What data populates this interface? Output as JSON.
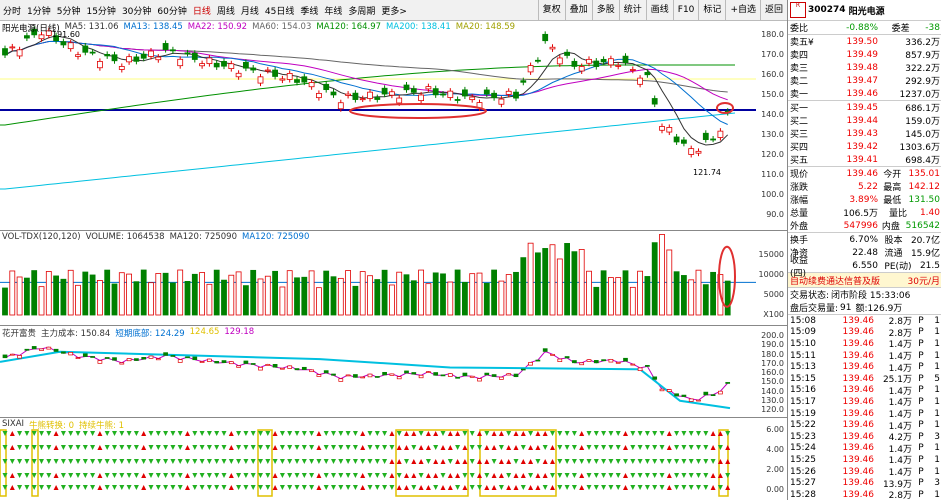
{
  "toolbar": {
    "timeframes": [
      {
        "label": "分时",
        "active": false
      },
      {
        "label": "1分钟",
        "active": false
      },
      {
        "label": "5分钟",
        "active": false
      },
      {
        "label": "15分钟",
        "active": false
      },
      {
        "label": "30分钟",
        "active": false
      },
      {
        "label": "60分钟",
        "active": false
      },
      {
        "label": "日线",
        "active": true
      },
      {
        "label": "周线",
        "active": false
      },
      {
        "label": "月线",
        "active": false
      },
      {
        "label": "45日线",
        "active": false
      },
      {
        "label": "季线",
        "active": false
      },
      {
        "label": "年线",
        "active": false
      },
      {
        "label": "多周期",
        "active": false
      },
      {
        "label": "更多>",
        "active": false
      }
    ],
    "tools": [
      "复权",
      "叠加",
      "多股",
      "统计",
      "画线",
      "F10",
      "标记",
      "+自选",
      "返回"
    ]
  },
  "main_chart": {
    "title": "阳光电源(日线)",
    "ma_labels": [
      {
        "text": "MA5: 131.06",
        "color": "#333333"
      },
      {
        "text": "MA13: 138.45",
        "color": "#0070d0"
      },
      {
        "text": "MA22: 150.92",
        "color": "#c000c0"
      },
      {
        "text": "MA60: 154.03",
        "color": "#666666"
      },
      {
        "text": "MA120: 164.97",
        "color": "#009000"
      },
      {
        "text": "MA200: 138.41",
        "color": "#00c0e0"
      },
      {
        "text": "MA20: 148.59",
        "color": "#a0a000"
      }
    ],
    "high_label": "191.60",
    "low_label": "121.74",
    "axis": [
      "180.0",
      "170.0",
      "160.0",
      "150.0",
      "140.0",
      "130.0",
      "120.0",
      "110.0",
      "100.0",
      "90.0"
    ]
  },
  "volume_chart": {
    "labels": [
      {
        "text": "VOL-TDX(120,120)",
        "color": "#333333"
      },
      {
        "text": "VOLUME: 1064538",
        "color": "#333333"
      },
      {
        "text": "MA120: 725090",
        "color": "#333333"
      },
      {
        "text": "MA120: 725090",
        "color": "#0070d0"
      }
    ],
    "axis": [
      "15000",
      "10000",
      "5000",
      "X100"
    ]
  },
  "cost_chart": {
    "labels": [
      {
        "text": "花开富贵",
        "color": "#333333"
      },
      {
        "text": "主力成本: 150.84",
        "color": "#333333"
      },
      {
        "text": "短期底部: 124.29",
        "color": "#0070d0"
      },
      {
        "text": "124.65",
        "color": "#e0c000"
      },
      {
        "text": "129.18",
        "color": "#c000c0"
      }
    ],
    "axis": [
      "200.0",
      "190.0",
      "180.0",
      "170.0",
      "160.0",
      "150.0",
      "140.0",
      "130.0",
      "120.0"
    ]
  },
  "signal_chart": {
    "labels": [
      {
        "text": "SIXAI",
        "color": "#333333"
      },
      {
        "text": "牛熊转换: 0",
        "color": "#e0c000"
      },
      {
        "text": "持续牛熊: 1",
        "color": "#e0c000"
      }
    ],
    "axis": [
      "6.00",
      "4.00",
      "2.00",
      "0.00"
    ]
  },
  "quote": {
    "code": "300274",
    "name": "阳光电源",
    "badge": "R",
    "weibi": {
      "label": "委比",
      "value": "-0.88%",
      "label2": "委差",
      "value2": "-38"
    },
    "sells": [
      {
        "label": "卖五¥",
        "price": "139.50",
        "vol": "336.2万"
      },
      {
        "label": "卖四",
        "price": "139.49",
        "vol": "857.9万"
      },
      {
        "label": "卖三",
        "price": "139.48",
        "vol": "322.2万"
      },
      {
        "label": "卖二",
        "price": "139.47",
        "vol": "292.9万"
      },
      {
        "label": "卖一",
        "price": "139.46",
        "vol": "1237.0万"
      }
    ],
    "buys": [
      {
        "label": "买一",
        "price": "139.45",
        "vol": "686.1万"
      },
      {
        "label": "买二",
        "price": "139.44",
        "vol": "159.0万"
      },
      {
        "label": "买三",
        "price": "139.43",
        "vol": "145.0万"
      },
      {
        "label": "买四",
        "price": "139.42",
        "vol": "1303.6万"
      },
      {
        "label": "买五",
        "price": "139.41",
        "vol": "698.4万"
      }
    ],
    "stats": [
      {
        "l1": "现价",
        "v1": "139.46",
        "c1": "red",
        "l2": "今开",
        "v2": "135.01",
        "c2": "red"
      },
      {
        "l1": "涨跌",
        "v1": "5.22",
        "c1": "red",
        "l2": "最高",
        "v2": "142.12",
        "c2": "red"
      },
      {
        "l1": "涨幅",
        "v1": "3.89%",
        "c1": "red",
        "l2": "最低",
        "v2": "131.50",
        "c2": "green"
      },
      {
        "l1": "总量",
        "v1": "106.5万",
        "c1": "",
        "l2": "量比",
        "v2": "1.40",
        "c2": "red"
      },
      {
        "l1": "外盘",
        "v1": "547996",
        "c1": "red",
        "l2": "内盘",
        "v2": "516542",
        "c2": "green"
      }
    ],
    "stats2": [
      {
        "l1": "换手",
        "v1": "6.70%",
        "l2": "股本",
        "v2": "20.7亿"
      },
      {
        "l1": "净资",
        "v1": "22.48",
        "l2": "流通",
        "v2": "15.9亿"
      },
      {
        "l1": "收益(四)",
        "v1": "6.550",
        "l2": "PE(动)",
        "v2": "21.5"
      }
    ],
    "promo": {
      "text": "自动续费通达信普及版",
      "price": "30元/月"
    },
    "status": {
      "label": "交易状态:",
      "value": "闭市阶段 15:33:06"
    },
    "summary": {
      "label": "盘后交易量:",
      "vol": "91",
      "amt_label": "额:",
      "amt": "126.9万"
    },
    "ticks": [
      {
        "time": "15:08",
        "price": "139.46",
        "vol": "2.8万",
        "side": "P",
        "n": "1"
      },
      {
        "time": "15:09",
        "price": "139.46",
        "vol": "2.8万",
        "side": "P",
        "n": "1"
      },
      {
        "time": "15:10",
        "price": "139.46",
        "vol": "1.4万",
        "side": "P",
        "n": "1"
      },
      {
        "time": "15:11",
        "price": "139.46",
        "vol": "1.4万",
        "side": "P",
        "n": "1"
      },
      {
        "time": "15:13",
        "price": "139.46",
        "vol": "1.4万",
        "side": "P",
        "n": "1"
      },
      {
        "time": "15:15",
        "price": "139.46",
        "vol": "25.1万",
        "side": "P",
        "n": "5"
      },
      {
        "time": "15:16",
        "price": "139.46",
        "vol": "1.4万",
        "side": "P",
        "n": "1"
      },
      {
        "time": "15:17",
        "price": "139.46",
        "vol": "1.4万",
        "side": "P",
        "n": "1"
      },
      {
        "time": "15:19",
        "price": "139.46",
        "vol": "1.4万",
        "side": "P",
        "n": "1"
      },
      {
        "time": "15:22",
        "price": "139.46",
        "vol": "1.4万",
        "side": "P",
        "n": "1"
      },
      {
        "time": "15:23",
        "price": "139.46",
        "vol": "4.2万",
        "side": "P",
        "n": "3"
      },
      {
        "time": "15:24",
        "price": "139.46",
        "vol": "1.4万",
        "side": "P",
        "n": "1"
      },
      {
        "time": "15:25",
        "price": "139.46",
        "vol": "1.4万",
        "side": "P",
        "n": "1"
      },
      {
        "time": "15:26",
        "price": "139.46",
        "vol": "1.4万",
        "side": "P",
        "n": "1"
      },
      {
        "time": "15:27",
        "price": "139.46",
        "vol": "13.9万",
        "side": "P",
        "n": "3"
      },
      {
        "time": "15:28",
        "price": "139.46",
        "vol": "2.8万",
        "side": "P",
        "n": "1"
      }
    ]
  }
}
